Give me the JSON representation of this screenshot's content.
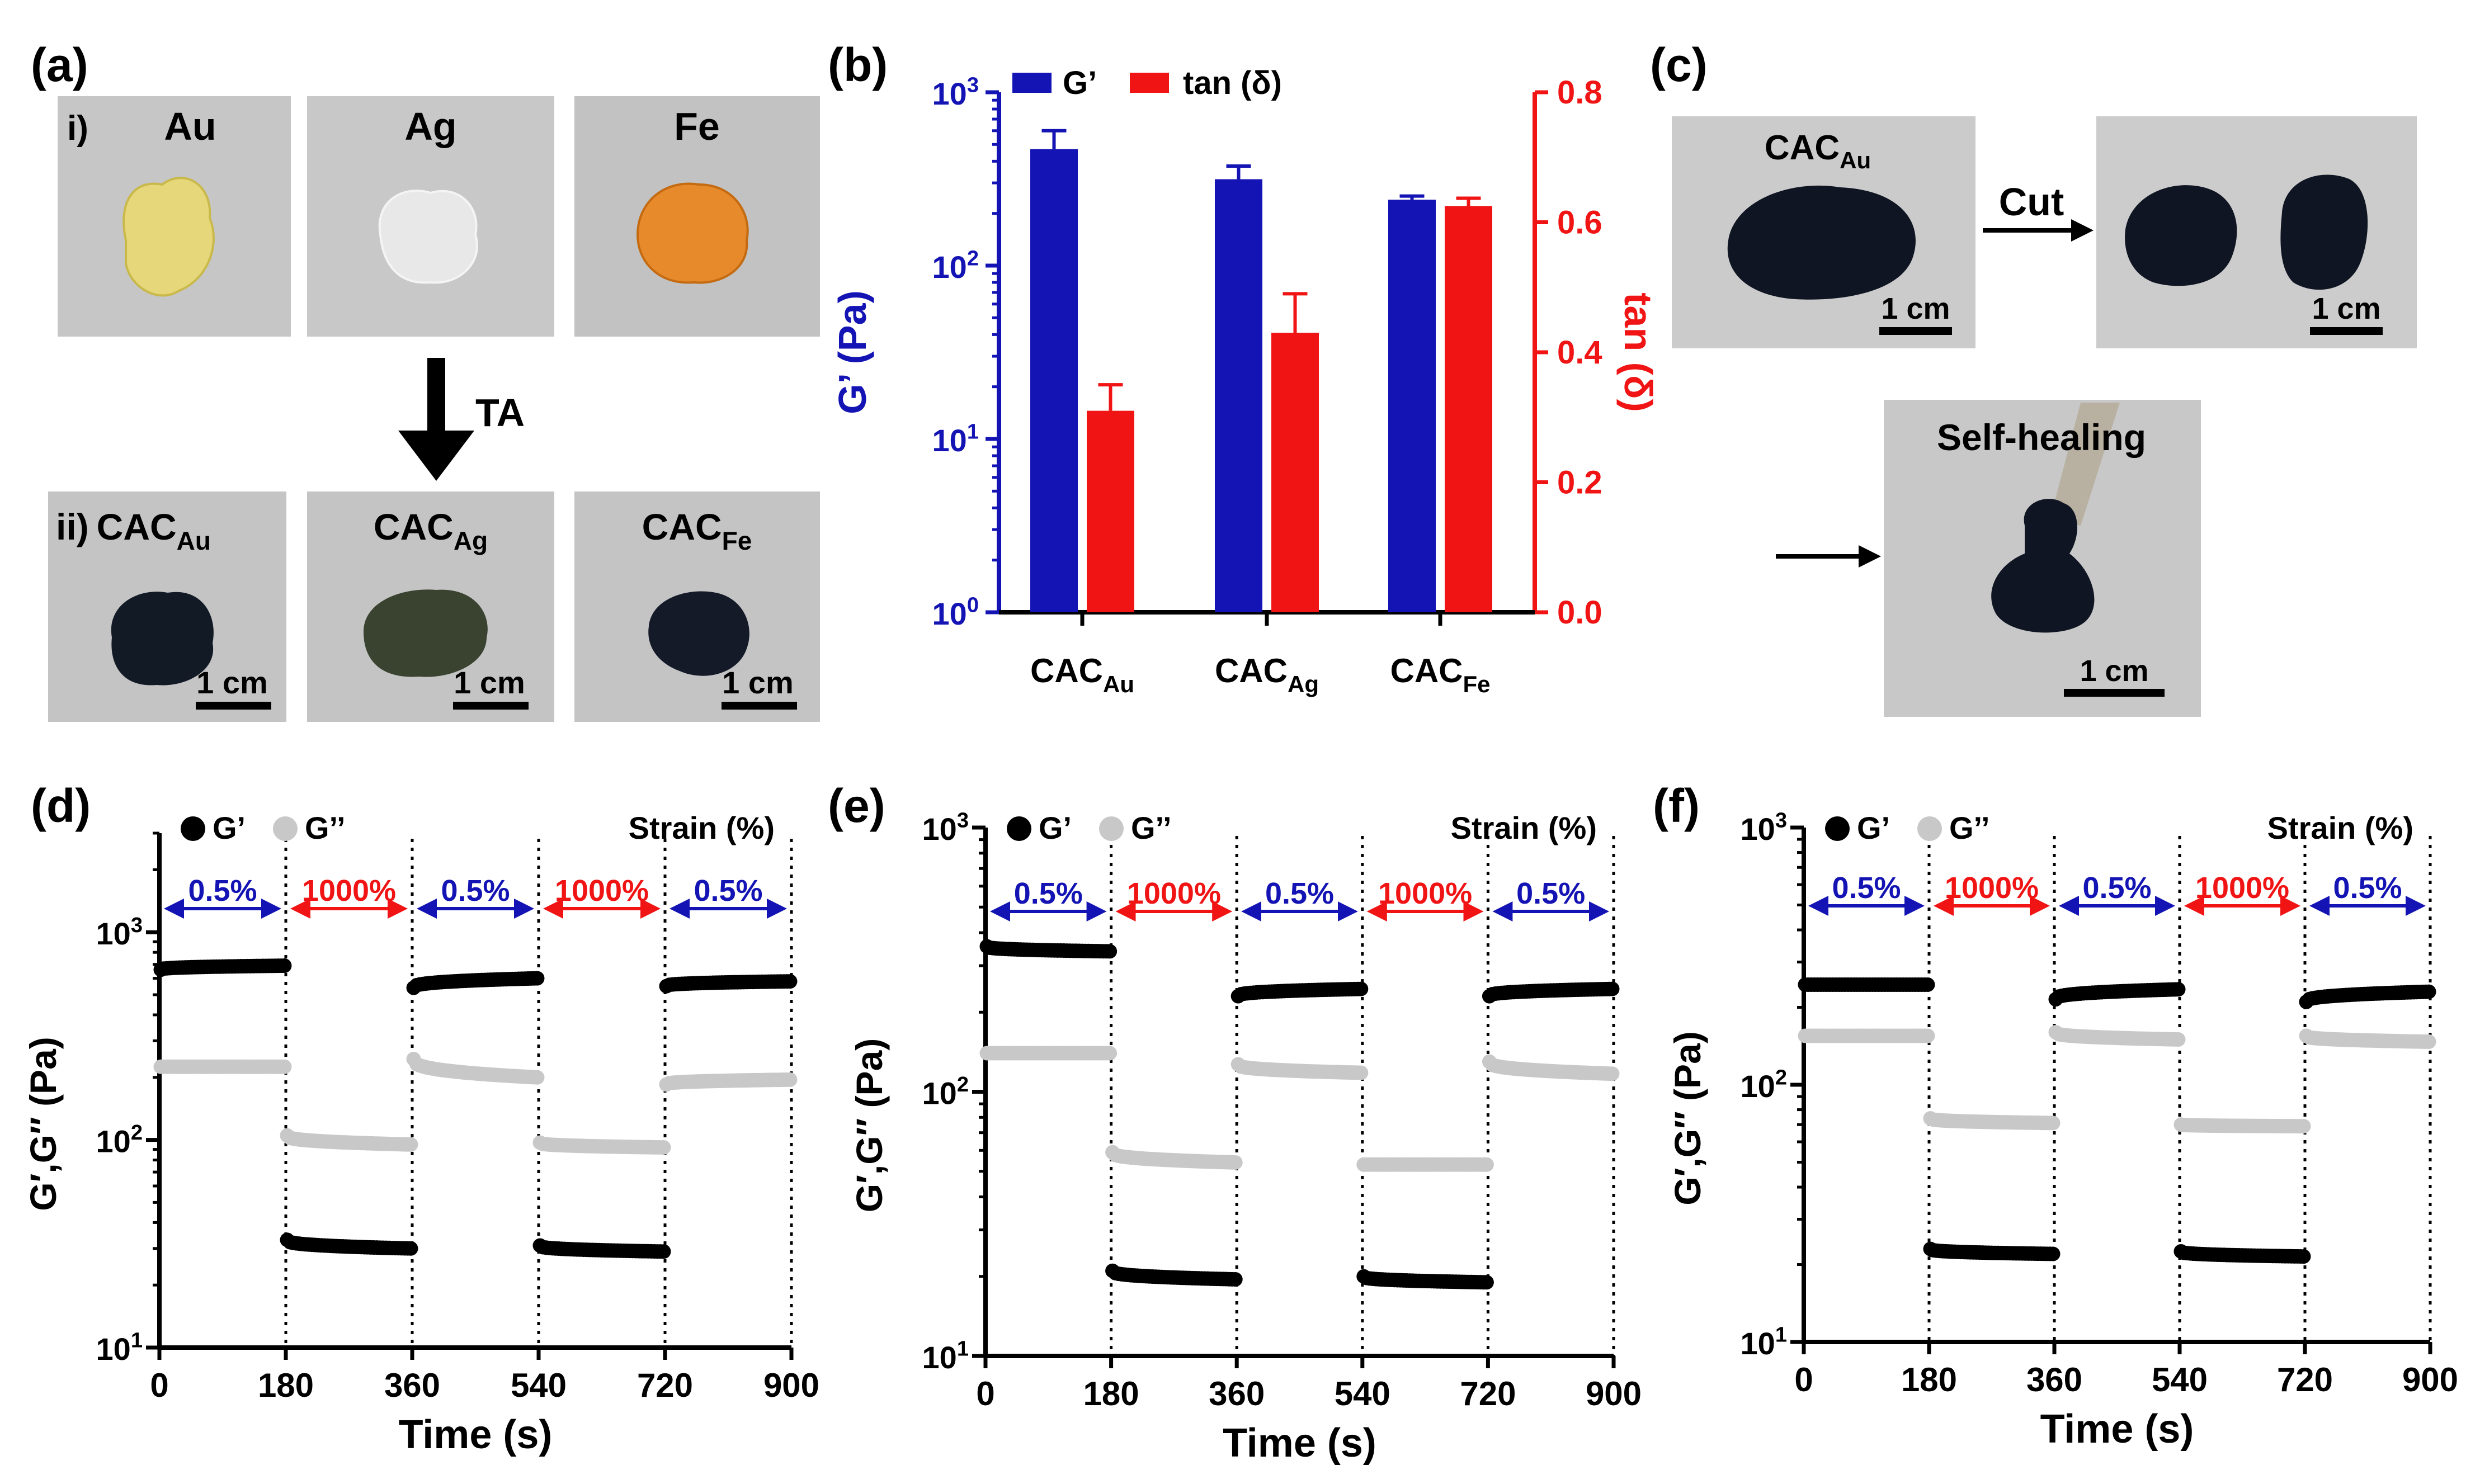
{
  "panel_labels": {
    "a": "(a)",
    "b": "(b)",
    "c": "(c)",
    "d": "(d)",
    "e": "(e)",
    "f": "(f)"
  },
  "panel_a": {
    "row_i_label": "i)",
    "row_ii_label": "ii)",
    "top_labels": [
      "Au",
      "Ag",
      "Fe"
    ],
    "bottom_labels": [
      {
        "base": "CAC",
        "sub": "Au"
      },
      {
        "base": "CAC",
        "sub": "Ag"
      },
      {
        "base": "CAC",
        "sub": "Fe"
      }
    ],
    "arrow_label": "TA",
    "scale_bar_label": "1 cm",
    "colors": {
      "au_gel": "#e6d87a",
      "ag_gel": "#e4e4e4",
      "fe_gel": "#e68a2c",
      "cac_au": "#121a26",
      "cac_ag": "#3a4230",
      "cac_fe": "#141a28",
      "photo_bg": "#c4c4c4"
    }
  },
  "panel_c": {
    "top_left_label": {
      "base": "CAC",
      "sub": "Au"
    },
    "cut_label": "Cut",
    "healing_label": "Self-healing",
    "scale_bar_label": "1 cm"
  },
  "chart_data": [
    {
      "panel": "b",
      "type": "bar",
      "categories": [
        {
          "base": "CAC",
          "sub": "Au"
        },
        {
          "base": "CAC",
          "sub": "Ag"
        },
        {
          "base": "CAC",
          "sub": "Fe"
        }
      ],
      "series": [
        {
          "name": "G’",
          "axis": "left",
          "color": "#1414b4",
          "values": [
            470,
            315,
            240
          ],
          "errors": [
            130,
            60,
            12
          ]
        },
        {
          "name": "tan (δ)",
          "axis": "right",
          "color": "#f01414",
          "values": [
            0.31,
            0.43,
            0.625
          ],
          "errors": [
            0.04,
            0.06,
            0.012
          ]
        }
      ],
      "left_axis": {
        "label": "G’ (Pa)",
        "scale": "log",
        "range": [
          1,
          1000
        ],
        "ticks": [
          {
            "base": "10",
            "exp": "0"
          },
          {
            "base": "10",
            "exp": "1"
          },
          {
            "base": "10",
            "exp": "2"
          },
          {
            "base": "10",
            "exp": "3"
          }
        ]
      },
      "right_axis": {
        "label": "tan (δ)",
        "scale": "linear",
        "range": [
          0,
          0.8
        ],
        "ticks": [
          "0.0",
          "0.2",
          "0.4",
          "0.6",
          "0.8"
        ]
      },
      "legend": {
        "position": "top",
        "entries": [
          "G’",
          "tan (δ)"
        ]
      }
    },
    {
      "panel": "d",
      "type": "scatter",
      "title": "",
      "xlabel": "Time (s)",
      "ylabel": "G′,G′′ (Pa)",
      "xlim": [
        0,
        900
      ],
      "ylim": [
        10,
        3000
      ],
      "x_ticks": [
        "0",
        "180",
        "360",
        "540",
        "720",
        "900"
      ],
      "y_ticks": [
        {
          "base": "10",
          "exp": "1"
        },
        {
          "base": "10",
          "exp": "2"
        },
        {
          "base": "10",
          "exp": "3"
        }
      ],
      "legend": [
        "G’",
        "G’’"
      ],
      "strain_label": "Strain (%)",
      "segments": [
        "0.5%",
        "1000%",
        "0.5%",
        "1000%",
        "0.5%"
      ],
      "series": [
        {
          "name": "G’",
          "color": "#000000",
          "segments": [
            [
              660,
              690
            ],
            [
              33,
              30
            ],
            [
              540,
              600
            ],
            [
              31,
              29
            ],
            [
              550,
              580
            ]
          ]
        },
        {
          "name": "G’’",
          "color": "#c8c8c8",
          "segments": [
            [
              225,
              225
            ],
            [
              105,
              95
            ],
            [
              245,
              200
            ],
            [
              97,
              92
            ],
            [
              185,
              195
            ]
          ]
        }
      ]
    },
    {
      "panel": "e",
      "type": "scatter",
      "title": "",
      "xlabel": "Time (s)",
      "ylabel": "G′,G′′ (Pa)",
      "xlim": [
        0,
        900
      ],
      "ylim": [
        10,
        1000
      ],
      "x_ticks": [
        "0",
        "180",
        "360",
        "540",
        "720",
        "900"
      ],
      "y_ticks": [
        {
          "base": "10",
          "exp": "1"
        },
        {
          "base": "10",
          "exp": "2"
        },
        {
          "base": "10",
          "exp": "3"
        }
      ],
      "legend": [
        "G’",
        "G’’"
      ],
      "strain_label": "Strain (%)",
      "segments": [
        "0.5%",
        "1000%",
        "0.5%",
        "1000%",
        "0.5%"
      ],
      "series": [
        {
          "name": "G’",
          "color": "#000000",
          "segments": [
            [
              355,
              340
            ],
            [
              21,
              19.5
            ],
            [
              230,
              245
            ],
            [
              20,
              19
            ],
            [
              230,
              245
            ]
          ]
        },
        {
          "name": "G’’",
          "color": "#c8c8c8",
          "segments": [
            [
              140,
              140
            ],
            [
              59,
              54
            ],
            [
              127,
              118
            ],
            [
              53,
              53
            ],
            [
              130,
              117
            ]
          ]
        }
      ]
    },
    {
      "panel": "f",
      "type": "scatter",
      "title": "",
      "xlabel": "Time (s)",
      "ylabel": "G′,G′′ (Pa)",
      "xlim": [
        0,
        900
      ],
      "ylim": [
        10,
        1000
      ],
      "x_ticks": [
        "0",
        "180",
        "360",
        "540",
        "720",
        "900"
      ],
      "y_ticks": [
        {
          "base": "10",
          "exp": "1"
        },
        {
          "base": "10",
          "exp": "2"
        },
        {
          "base": "10",
          "exp": "3"
        }
      ],
      "legend": [
        "G’",
        "G’’"
      ],
      "strain_label": "Strain (%)",
      "segments": [
        "0.5%",
        "1000%",
        "0.5%",
        "1000%",
        "0.5%"
      ],
      "series": [
        {
          "name": "G’",
          "color": "#000000",
          "segments": [
            [
              245,
              245
            ],
            [
              23,
              22
            ],
            [
              215,
              235
            ],
            [
              22.5,
              21.5
            ],
            [
              210,
              230
            ]
          ]
        },
        {
          "name": "G’’",
          "color": "#c8c8c8",
          "segments": [
            [
              155,
              155
            ],
            [
              74,
              71
            ],
            [
              160,
              150
            ],
            [
              70,
              69
            ],
            [
              155,
              147
            ]
          ]
        }
      ]
    }
  ],
  "colors": {
    "low_strain": "#1414b4",
    "high_strain": "#f01414",
    "g_prime": "#000000",
    "g_double_prime": "#c8c8c8"
  }
}
